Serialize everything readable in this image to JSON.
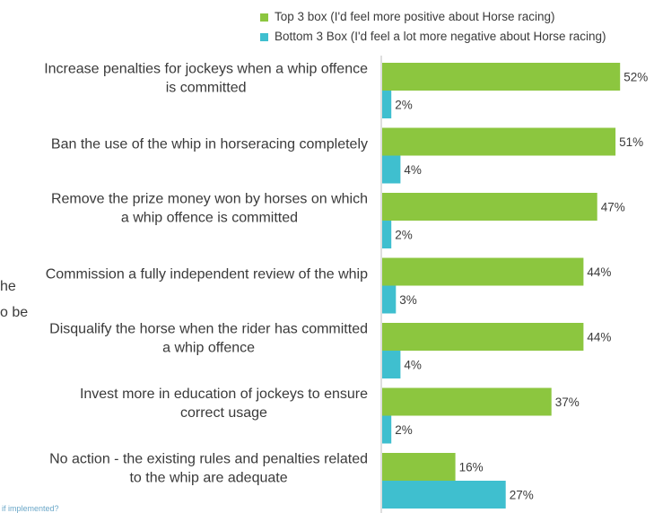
{
  "colors": {
    "top": "#8cc63f",
    "bottom": "#3fbfcf",
    "axis": "#bdbdbd"
  },
  "legend": [
    {
      "label": "Top 3 box (I'd feel more positive about Horse racing)",
      "color": "#8cc63f"
    },
    {
      "label": "Bottom 3 Box (I'd feel a lot more negative about Horse racing)",
      "color": "#3fbfcf"
    }
  ],
  "fragments": {
    "left1": "he",
    "left2": "o be",
    "footnote": "if implemented?"
  },
  "chart_data": {
    "type": "bar",
    "orientation": "horizontal",
    "categories": [
      [
        "Increase penalties for jockeys when a whip offence",
        "is committed"
      ],
      [
        "Ban the use of the whip in horseracing completely"
      ],
      [
        "Remove the prize money won by horses on which",
        "a whip offence is committed"
      ],
      [
        "Commission a fully independent review of the whip"
      ],
      [
        "Disqualify the horse when the rider has committed",
        "a whip offence"
      ],
      [
        "Invest more in education of jockeys to ensure",
        "correct usage"
      ],
      [
        "No action - the existing rules and penalties related",
        "to the whip are adequate"
      ]
    ],
    "series": [
      {
        "name": "Top 3 box (I'd feel more positive about Horse racing)",
        "values": [
          52,
          51,
          47,
          44,
          44,
          37,
          16
        ],
        "labels": [
          "52%",
          "51%",
          "47%",
          "44%",
          "44%",
          "37%",
          "16%"
        ]
      },
      {
        "name": "Bottom 3 Box (I'd feel a lot more negative about Horse racing)",
        "values": [
          2,
          4,
          2,
          3,
          4,
          2,
          27
        ],
        "labels": [
          "2%",
          "4%",
          "2%",
          "3%",
          "4%",
          "2%",
          "27%"
        ]
      }
    ],
    "xlim": [
      0,
      100
    ],
    "legend_position": "top",
    "grid": false
  }
}
